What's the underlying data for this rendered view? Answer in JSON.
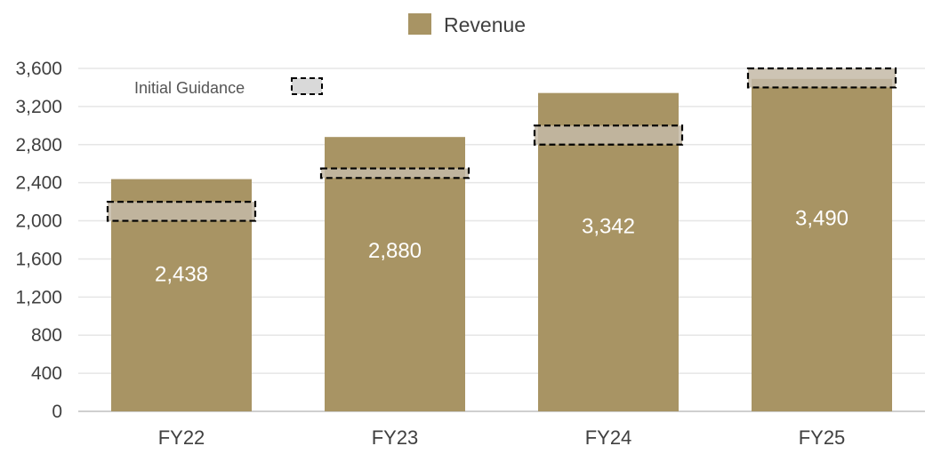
{
  "chart_data": {
    "type": "bar",
    "title": "",
    "xlabel": "",
    "ylabel": "",
    "categories": [
      "FY22",
      "FY23",
      "FY24",
      "FY25"
    ],
    "series": [
      {
        "name": "Revenue",
        "values": [
          2438,
          2880,
          3342,
          3490
        ],
        "labels": [
          "2,438",
          "2,880",
          "3,342",
          "3,490"
        ],
        "color": "#a89464"
      }
    ],
    "guidance": {
      "name": "Initial Guidance",
      "ranges": [
        [
          2000,
          2200
        ],
        [
          2450,
          2550
        ],
        [
          2800,
          3000
        ],
        [
          3400,
          3600
        ]
      ],
      "color": "#c4baa7"
    },
    "ylim": [
      0,
      3600
    ],
    "yticks": [
      0,
      400,
      800,
      1200,
      1600,
      2000,
      2400,
      2800,
      3200,
      3600
    ],
    "ytick_labels": [
      "0",
      "400",
      "800",
      "1,200",
      "1,600",
      "2,000",
      "2,400",
      "2,800",
      "3,200",
      "3,600"
    ],
    "grid": true,
    "legend": "top-center"
  }
}
